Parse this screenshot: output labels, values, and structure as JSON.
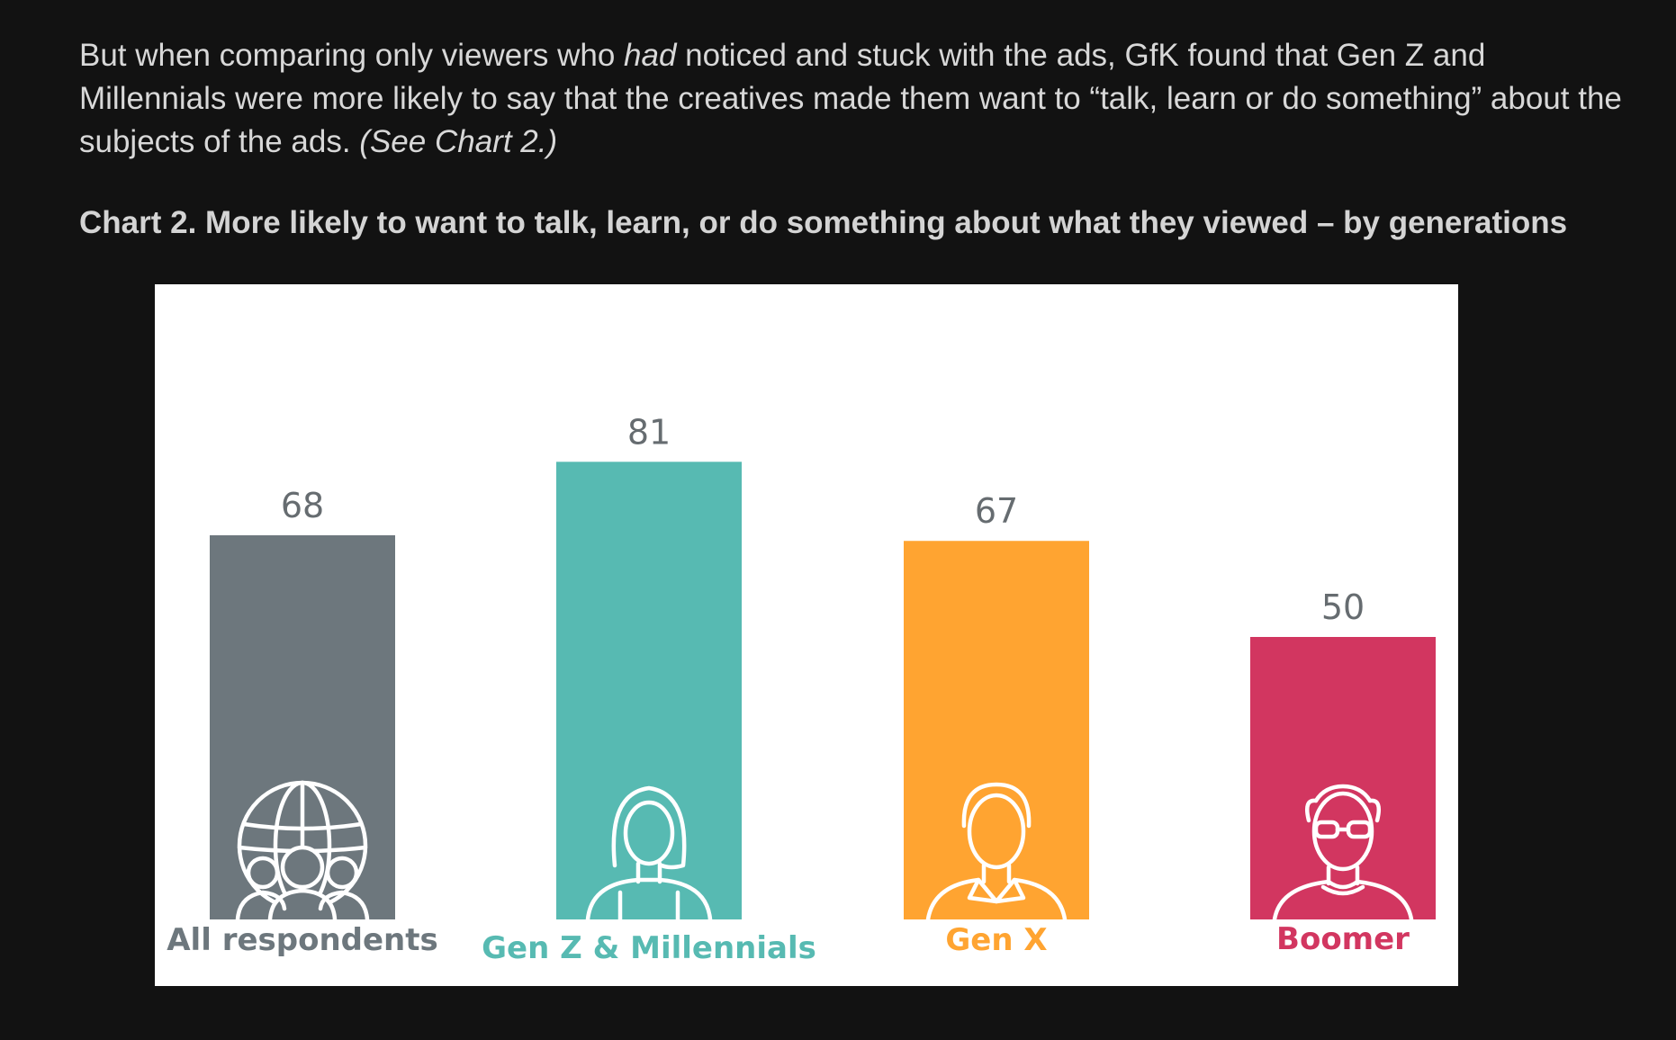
{
  "intro": {
    "part1": "But when comparing only viewers who ",
    "emphasis": "had",
    "part2": " noticed and stuck with the ads, GfK found that Gen Z and Millennials were more likely to say that the creatives made them want to “talk, learn or do something” about the subjects of the ads. ",
    "reference": "(See Chart 2.)"
  },
  "chart_heading": "Chart 2. More likely to want to talk, learn, or do something about what they viewed – by generations",
  "chart_data": {
    "type": "bar",
    "categories": [
      "All respondents",
      "Gen Z & Millennials",
      "Gen X",
      "Boomer"
    ],
    "values": [
      68,
      81,
      67,
      50
    ],
    "value_labels": [
      "68",
      "81",
      "67",
      "50"
    ],
    "colors": [
      "#6d777d",
      "#57bab2",
      "#ffa431",
      "#d23660"
    ],
    "label_colors": [
      "#6d777d",
      "#57bab2",
      "#ffa431",
      "#d23660"
    ],
    "icons": [
      "group-globe-icon",
      "young-woman-icon",
      "man-collar-icon",
      "elderly-man-glasses-icon"
    ],
    "ylim": [
      0,
      100
    ],
    "grid": false,
    "legend": "none"
  }
}
